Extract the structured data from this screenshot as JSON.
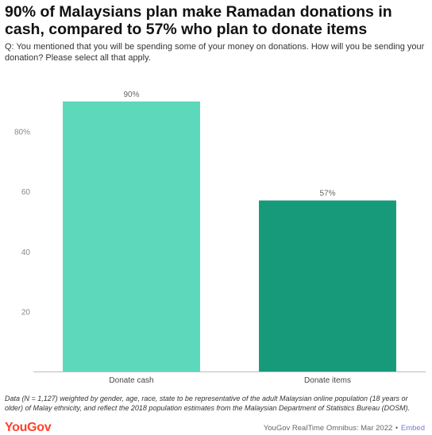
{
  "header": {
    "title": "90% of Malaysians plan make Ramadan donations in cash, compared to 57% who plan to donate items",
    "question": "Q: You mentioned that you will be spending some of your money on donations. How will you be sending your donation? Please select all that apply."
  },
  "chart_data": {
    "type": "bar",
    "categories": [
      "Donate cash",
      "Donate items"
    ],
    "values": [
      90,
      57
    ],
    "data_labels": [
      "90%",
      "57%"
    ],
    "colors": [
      "#5dd8bb",
      "#169a7a"
    ],
    "ylim": [
      0,
      100
    ],
    "yticks": [
      20,
      40,
      60,
      80
    ],
    "ytick_labels": [
      "20",
      "40",
      "60",
      "80%"
    ],
    "grid": false,
    "xlabel": "",
    "ylabel": ""
  },
  "footer": {
    "note": "Data (N = 1,127) weighted by gender, age, race, state to be representative of the adult Malaysian online population (18 years or older) of Malay ethnicity, and reflect the 2018 population estimates from the Malaysian Department of Statistics Bureau (DOSM).",
    "brand": "YouGov",
    "source": "YouGov RealTime Omnibus: Mar 2022",
    "separator": "•",
    "embed_label": "Embed"
  }
}
